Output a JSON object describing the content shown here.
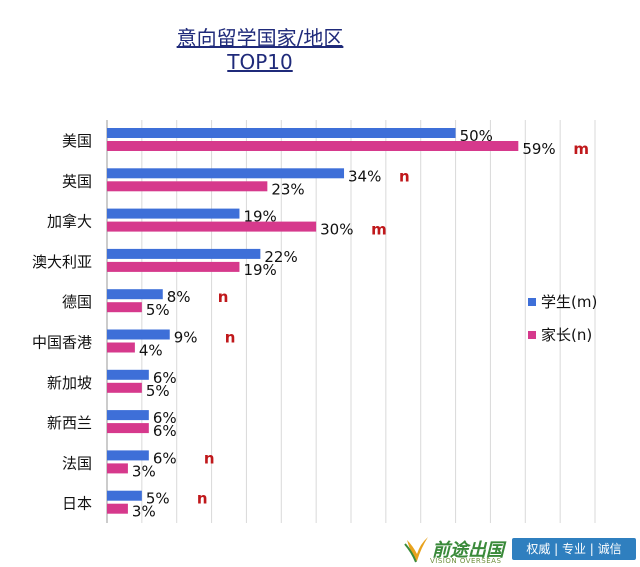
{
  "title_line1": "意向留学国家/地区",
  "title_line2": "TOP10",
  "chart_data": {
    "type": "bar",
    "orientation": "horizontal",
    "categories": [
      "美国",
      "英国",
      "加拿大",
      "澳大利亚",
      "德国",
      "中国香港",
      "新加坡",
      "新西兰",
      "法国",
      "日本"
    ],
    "series": [
      {
        "name": "学生(m)",
        "color": "#3e6fd8",
        "values": [
          50,
          34,
          19,
          22,
          8,
          9,
          6,
          6,
          6,
          5
        ],
        "labels": [
          "50%",
          "34%",
          "19%",
          "22%",
          "8%",
          "9%",
          "6%",
          "6%",
          "6%",
          "5%"
        ]
      },
      {
        "name": "家长(n)",
        "color": "#d6398c",
        "values": [
          59,
          23,
          30,
          19,
          5,
          4,
          5,
          6,
          3,
          3
        ],
        "labels": [
          "59%",
          "23%",
          "30%",
          "19%",
          "5%",
          "4%",
          "5%",
          "6%",
          "3%",
          "3%"
        ]
      }
    ],
    "significance_marks": [
      "m",
      "n",
      "m",
      "",
      "n",
      "n",
      "",
      "",
      "n",
      "n"
    ],
    "xlim": [
      0,
      70
    ],
    "grid": true,
    "legend": "right"
  },
  "brand": {
    "name": "前途出国",
    "name_en": "VISION OVERSEAS",
    "slogan": "权威 | 专业 | 诚信",
    "logo_icon": "v-swoosh-logo-icon"
  }
}
